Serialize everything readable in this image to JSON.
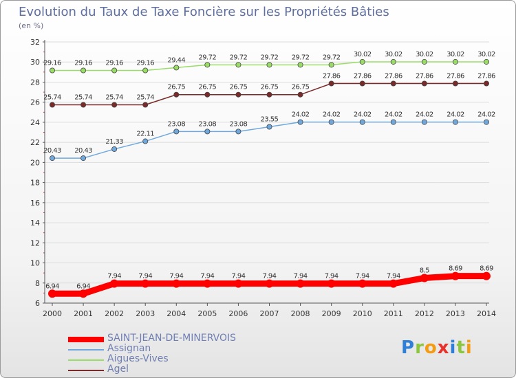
{
  "title": "Evolution du Taux de Taxe Foncière sur les Propriétés Bâties",
  "subtitle": "(en %)",
  "logo": {
    "text": "Proxiti",
    "letters": [
      {
        "ch": "P",
        "color": "#2f7fd8"
      },
      {
        "ch": "r",
        "color": "#8cc63f"
      },
      {
        "ch": "o",
        "color": "#f39c12"
      },
      {
        "ch": "x",
        "color": "#e8312a"
      },
      {
        "ch": "i",
        "color": "#2f7fd8"
      },
      {
        "ch": "t",
        "color": "#8cc63f"
      },
      {
        "ch": "i",
        "color": "#f39c12"
      }
    ]
  },
  "chart_data": {
    "type": "line",
    "x": [
      "2000",
      "2001",
      "2002",
      "2003",
      "2004",
      "2005",
      "2006",
      "2007",
      "2008",
      "2009",
      "2010",
      "2011",
      "2012",
      "2013",
      "2014"
    ],
    "ylim": [
      6,
      32
    ],
    "yticks": [
      6,
      8,
      10,
      12,
      14,
      16,
      18,
      20,
      22,
      24,
      26,
      28,
      30,
      32
    ],
    "legend_position": "bottom-left",
    "series": [
      {
        "name": "SAINT-JEAN-DE-MINERVOIS",
        "color": "#ff0000",
        "values": [
          6.94,
          6.94,
          7.94,
          7.94,
          7.94,
          7.94,
          7.94,
          7.94,
          7.94,
          7.94,
          7.94,
          7.94,
          8.5,
          8.69,
          8.69
        ],
        "labels": [
          "6.94",
          "6.94",
          "7.94",
          "7.94",
          "7.94",
          "7.94",
          "7.94",
          "7.94",
          "7.94",
          "7.94",
          "7.94",
          "7.94",
          "8.5",
          "8.69",
          "8.69"
        ]
      },
      {
        "name": "Assignan",
        "color": "#6fa8dc",
        "values": [
          20.43,
          20.43,
          21.33,
          22.11,
          23.08,
          23.08,
          23.08,
          23.55,
          24.02,
          24.02,
          24.02,
          24.02,
          24.02,
          24.02,
          24.02
        ],
        "labels": [
          "20.43",
          "20.43",
          "21.33",
          "22.11",
          "23.08",
          "23.08",
          "23.08",
          "23.55",
          "24.02",
          "24.02",
          "24.02",
          "24.02",
          "24.02",
          "24.02",
          "24.02"
        ]
      },
      {
        "name": "Aigues-Vives",
        "color": "#99dd66",
        "values": [
          29.16,
          29.16,
          29.16,
          29.16,
          29.44,
          29.72,
          29.72,
          29.72,
          29.72,
          29.72,
          30.02,
          30.02,
          30.02,
          30.02,
          30.02
        ],
        "labels": [
          "29.16",
          "29.16",
          "29.16",
          "29.16",
          "29.44",
          "29.72",
          "29.72",
          "29.72",
          "29.72",
          "29.72",
          "30.02",
          "30.02",
          "30.02",
          "30.02",
          "30.02"
        ]
      },
      {
        "name": "Agel",
        "color": "#7b2a2a",
        "values": [
          25.74,
          25.74,
          25.74,
          25.74,
          26.75,
          26.75,
          26.75,
          26.75,
          26.75,
          27.86,
          27.86,
          27.86,
          27.86,
          27.86,
          27.86
        ],
        "labels": [
          "25.74",
          "25.74",
          "25.74",
          "25.74",
          "26.75",
          "26.75",
          "26.75",
          "26.75",
          "26.75",
          "27.86",
          "27.86",
          "27.86",
          "27.86",
          "27.86",
          "27.86"
        ]
      }
    ]
  }
}
